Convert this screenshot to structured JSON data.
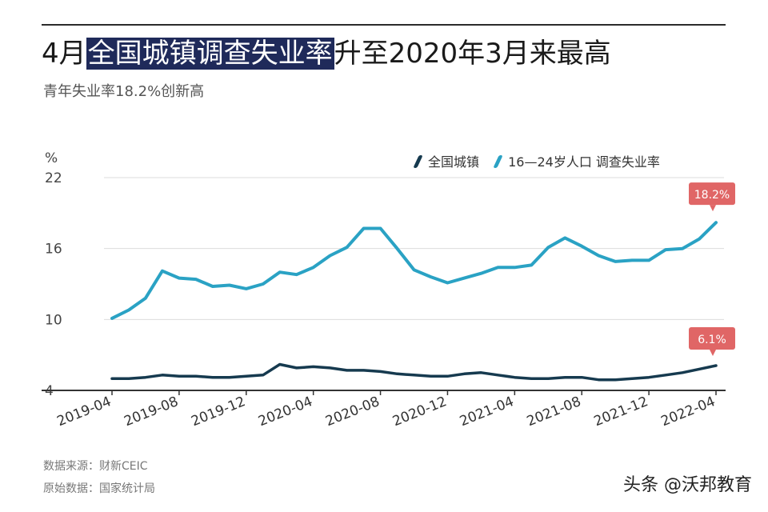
{
  "title_prefix": "4月",
  "title_highlight": "全国城镇调查失业率",
  "title_suffix": "升至2020年3月来最高",
  "subtitle": "青年失业率18.2%创新高",
  "sources": {
    "line1": "数据来源：财新CEIC",
    "line2": "原始数据：国家统计局"
  },
  "watermark": "头条 @沃邦教育",
  "colors": {
    "national": "#163a4f",
    "youth": "#2aa2c4",
    "callout": "#e06666",
    "grid": "#dddddd"
  },
  "chart_data": {
    "type": "line",
    "ylabel": "%",
    "ylim": [
      4,
      22
    ],
    "yticks": [
      4,
      10,
      16,
      22
    ],
    "legend_position": "top-right",
    "grid": true,
    "x": [
      "2019-04",
      "2019-05",
      "2019-06",
      "2019-07",
      "2019-08",
      "2019-09",
      "2019-10",
      "2019-11",
      "2019-12",
      "2020-01",
      "2020-02",
      "2020-03",
      "2020-04",
      "2020-05",
      "2020-06",
      "2020-07",
      "2020-08",
      "2020-09",
      "2020-10",
      "2020-11",
      "2020-12",
      "2021-01",
      "2021-02",
      "2021-03",
      "2021-04",
      "2021-05",
      "2021-06",
      "2021-07",
      "2021-08",
      "2021-09",
      "2021-10",
      "2021-11",
      "2021-12",
      "2022-01",
      "2022-02",
      "2022-03",
      "2022-04"
    ],
    "xticks": [
      "2019-04",
      "2019-08",
      "2019-12",
      "2020-04",
      "2020-08",
      "2020-12",
      "2021-04",
      "2021-08",
      "2021-12",
      "2022-04"
    ],
    "series": [
      {
        "name": "16—24岁人口 调查失业率",
        "color": "#2aa2c4",
        "values": [
          10.1,
          10.8,
          11.8,
          14.1,
          13.5,
          13.4,
          12.8,
          12.9,
          12.6,
          13.0,
          14.0,
          13.8,
          14.4,
          15.4,
          16.1,
          17.7,
          17.7,
          16.0,
          14.2,
          13.6,
          13.1,
          13.5,
          13.9,
          14.4,
          14.4,
          14.6,
          16.1,
          16.9,
          16.2,
          15.4,
          14.9,
          15.0,
          15.0,
          15.9,
          16.0,
          16.8,
          18.2
        ],
        "end_label": "18.2%"
      },
      {
        "name": "全国城镇",
        "color": "#163a4f",
        "values": [
          5.0,
          5.0,
          5.1,
          5.3,
          5.2,
          5.2,
          5.1,
          5.1,
          5.2,
          5.3,
          6.2,
          5.9,
          6.0,
          5.9,
          5.7,
          5.7,
          5.6,
          5.4,
          5.3,
          5.2,
          5.2,
          5.4,
          5.5,
          5.3,
          5.1,
          5.0,
          5.0,
          5.1,
          5.1,
          4.9,
          4.9,
          5.0,
          5.1,
          5.3,
          5.5,
          5.8,
          6.1
        ],
        "end_label": "6.1%"
      }
    ]
  }
}
